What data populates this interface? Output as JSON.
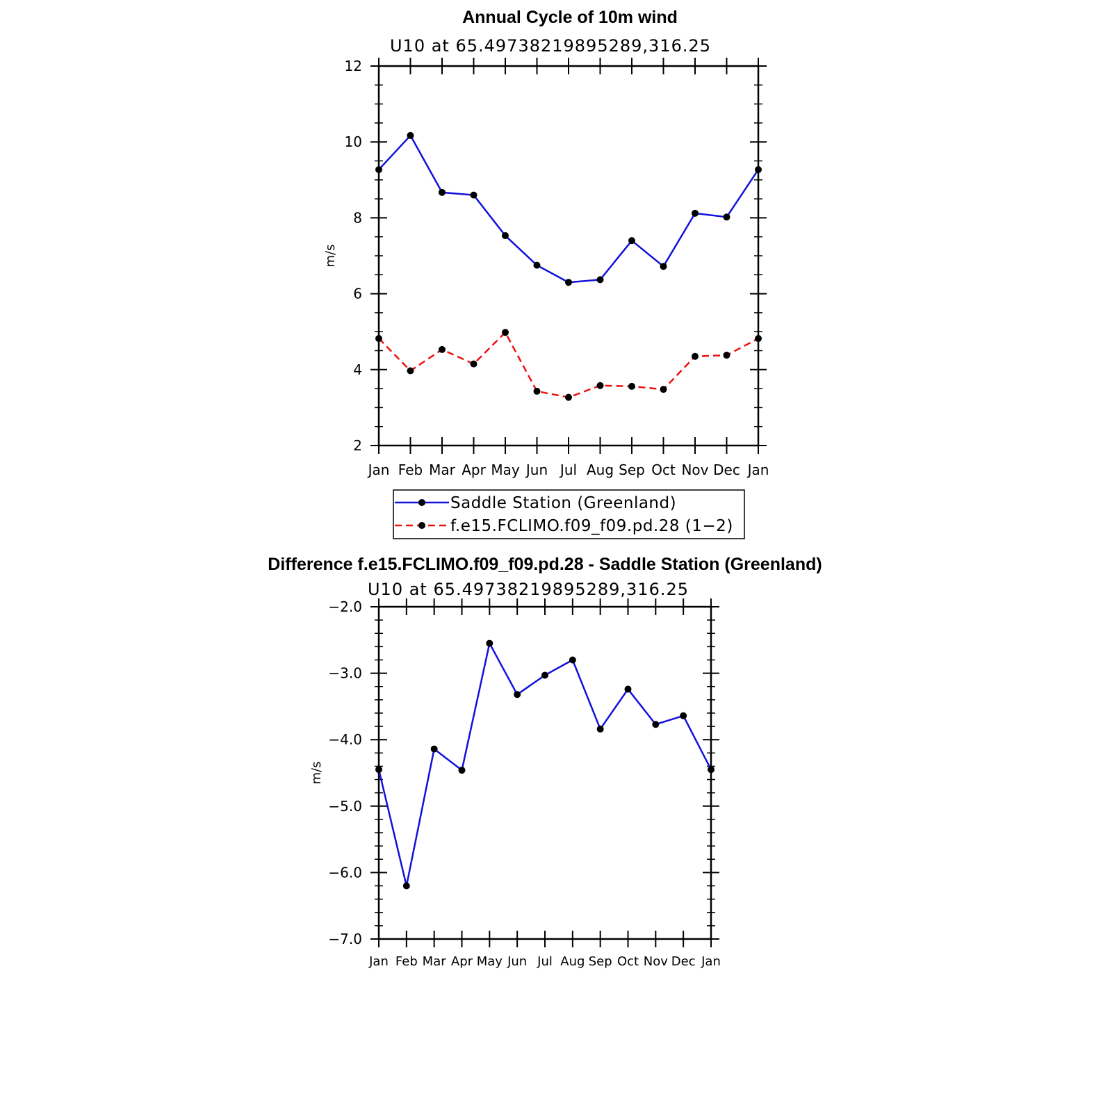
{
  "colors": {
    "series_1": "#1111dd",
    "series_2": "#ee1111",
    "marker": "#000000",
    "axis": "#000000"
  },
  "chart_data": [
    {
      "type": "line",
      "title": "Annual Cycle of 10m wind",
      "subtitle": "U10  at  65.49738219895289,316.25",
      "xlabel": "",
      "ylabel": "m/s",
      "categories": [
        "Jan",
        "Feb",
        "Mar",
        "Apr",
        "May",
        "Jun",
        "Jul",
        "Aug",
        "Sep",
        "Oct",
        "Nov",
        "Dec",
        "Jan"
      ],
      "yticks": [
        "2",
        "4",
        "6",
        "8",
        "10",
        "12"
      ],
      "ylim": [
        2,
        12
      ],
      "grid": false,
      "legend_position": "below",
      "series": [
        {
          "name": "Saddle Station (Greenland)",
          "style": "solid",
          "values": [
            9.27,
            10.17,
            8.67,
            8.6,
            7.53,
            6.75,
            6.3,
            6.37,
            7.4,
            6.72,
            8.12,
            8.02,
            9.27
          ]
        },
        {
          "name": "f.e15.FCLIMO.f09_f09.pd.28 (1−2)",
          "style": "dashed",
          "values": [
            4.82,
            3.97,
            4.53,
            4.15,
            4.98,
            3.43,
            3.27,
            3.58,
            3.56,
            3.48,
            4.35,
            4.38,
            4.82
          ]
        }
      ]
    },
    {
      "type": "line",
      "title": "Difference f.e15.FCLIMO.f09_f09.pd.28 - Saddle Station (Greenland)",
      "subtitle": "U10  at  65.49738219895289,316.25",
      "xlabel": "",
      "ylabel": "m/s",
      "categories": [
        "Jan",
        "Feb",
        "Mar",
        "Apr",
        "May",
        "Jun",
        "Jul",
        "Aug",
        "Sep",
        "Oct",
        "Nov",
        "Dec",
        "Jan"
      ],
      "yticks": [
        "−7.0",
        "−6.0",
        "−5.0",
        "−4.0",
        "−3.0",
        "−2.0"
      ],
      "ylim": [
        -7.0,
        -2.0
      ],
      "grid": false,
      "series": [
        {
          "style": "solid",
          "values": [
            -4.45,
            -6.2,
            -4.14,
            -4.46,
            -2.55,
            -3.32,
            -3.03,
            -2.8,
            -3.84,
            -3.24,
            -3.77,
            -3.64,
            -4.45
          ]
        }
      ]
    }
  ]
}
